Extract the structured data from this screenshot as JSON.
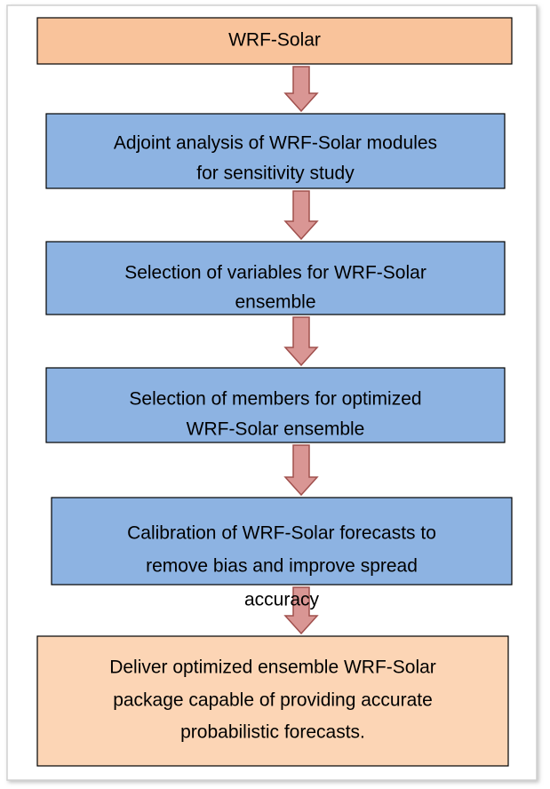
{
  "nodes": [
    {
      "lines": [
        "WRF-Solar"
      ]
    },
    {
      "lines": [
        "Adjoint analysis of WRF-Solar modules",
        "for sensitivity study"
      ]
    },
    {
      "lines": [
        "Selection of variables for WRF-Solar",
        "ensemble"
      ]
    },
    {
      "lines": [
        "Selection of members for optimized",
        "WRF-Solar ensemble"
      ]
    },
    {
      "lines": [
        "Calibration of WRF-Solar forecasts to",
        "remove bias and improve spread",
        "accuracy"
      ]
    },
    {
      "lines": [
        "Deliver optimized ensemble WRF-Solar",
        "package capable of providing accurate",
        "probabilistic forecasts."
      ]
    }
  ]
}
